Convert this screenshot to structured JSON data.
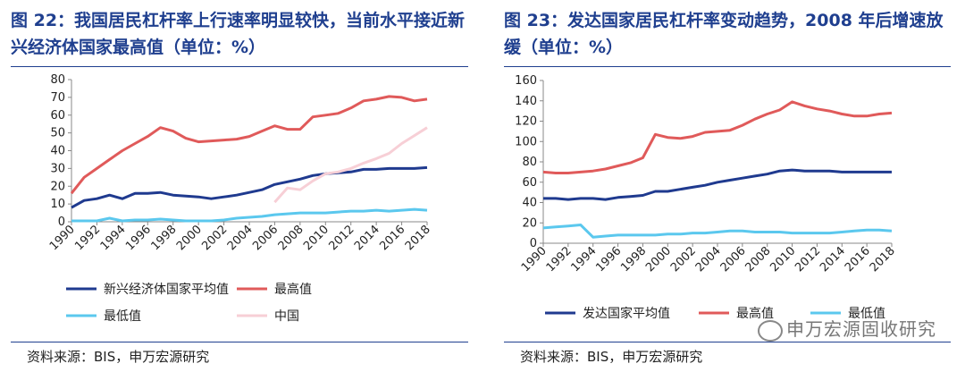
{
  "figures": [
    {
      "title": "图 22：我国居民杠杆率上行速率明显较快，当前水平接近新兴经济体国家最高值（单位：%）",
      "source": "资料来源：BIS，申万宏源研究"
    },
    {
      "title": "图 23：发达国家居民杠杆率变动趋势，2008 年后增速放缓（单位：%）",
      "source": "资料来源：BIS，申万宏源研究"
    }
  ],
  "watermark": "申万宏源固收研究",
  "chart_data": [
    {
      "type": "line",
      "ylim": [
        0,
        80
      ],
      "yticks": [
        0,
        10,
        20,
        30,
        40,
        50,
        60,
        70,
        80
      ],
      "xlim": [
        1990,
        2018
      ],
      "xticks": [
        "1990",
        "1992",
        "1994",
        "1996",
        "1998",
        "2000",
        "2002",
        "2004",
        "2006",
        "2008",
        "2010",
        "2012",
        "2014",
        "2016",
        "2018"
      ],
      "legend_position": "bottom",
      "series": [
        {
          "name": "新兴经济体国家平均值",
          "color": "#1f3a8f",
          "points": [
            [
              1990,
              8
            ],
            [
              1991,
              12
            ],
            [
              1992,
              13
            ],
            [
              1993,
              15
            ],
            [
              1994,
              13
            ],
            [
              1995,
              16
            ],
            [
              1996,
              16
            ],
            [
              1997,
              16.5
            ],
            [
              1998,
              15
            ],
            [
              1999,
              14.5
            ],
            [
              2000,
              14
            ],
            [
              2001,
              13
            ],
            [
              2002,
              14
            ],
            [
              2003,
              15
            ],
            [
              2004,
              16.5
            ],
            [
              2005,
              18
            ],
            [
              2006,
              21
            ],
            [
              2007,
              22.5
            ],
            [
              2008,
              24
            ],
            [
              2009,
              26
            ],
            [
              2010,
              27
            ],
            [
              2011,
              27.5
            ],
            [
              2012,
              28
            ],
            [
              2013,
              29.5
            ],
            [
              2014,
              29.5
            ],
            [
              2015,
              30
            ],
            [
              2016,
              30
            ],
            [
              2017,
              30
            ],
            [
              2018,
              30.5
            ]
          ]
        },
        {
          "name": "最高值",
          "color": "#e05a5a",
          "points": [
            [
              1990,
              16
            ],
            [
              1991,
              25
            ],
            [
              1992,
              30
            ],
            [
              1993,
              35
            ],
            [
              1994,
              40
            ],
            [
              1995,
              44
            ],
            [
              1996,
              48
            ],
            [
              1997,
              53
            ],
            [
              1998,
              51
            ],
            [
              1999,
              47
            ],
            [
              2000,
              45
            ],
            [
              2001,
              45.5
            ],
            [
              2002,
              46
            ],
            [
              2003,
              46.5
            ],
            [
              2004,
              48
            ],
            [
              2005,
              51
            ],
            [
              2006,
              54
            ],
            [
              2007,
              52
            ],
            [
              2008,
              52
            ],
            [
              2009,
              59
            ],
            [
              2010,
              60
            ],
            [
              2011,
              61
            ],
            [
              2012,
              64
            ],
            [
              2013,
              68
            ],
            [
              2014,
              69
            ],
            [
              2015,
              70.5
            ],
            [
              2016,
              70
            ],
            [
              2017,
              68
            ],
            [
              2018,
              69
            ]
          ]
        },
        {
          "name": "最低值",
          "color": "#5bc8ee",
          "points": [
            [
              1990,
              0.5
            ],
            [
              1991,
              0.5
            ],
            [
              1992,
              0.5
            ],
            [
              1993,
              2
            ],
            [
              1994,
              0.5
            ],
            [
              1995,
              1
            ],
            [
              1996,
              1
            ],
            [
              1997,
              1.5
            ],
            [
              1998,
              1
            ],
            [
              1999,
              0.5
            ],
            [
              2000,
              0.5
            ],
            [
              2001,
              0.5
            ],
            [
              2002,
              1
            ],
            [
              2003,
              2
            ],
            [
              2004,
              2.5
            ],
            [
              2005,
              3
            ],
            [
              2006,
              4
            ],
            [
              2007,
              4.5
            ],
            [
              2008,
              5
            ],
            [
              2009,
              5
            ],
            [
              2010,
              5
            ],
            [
              2011,
              5.5
            ],
            [
              2012,
              6
            ],
            [
              2013,
              6
            ],
            [
              2014,
              6.5
            ],
            [
              2015,
              6
            ],
            [
              2016,
              6.5
            ],
            [
              2017,
              7
            ],
            [
              2018,
              6.5
            ]
          ]
        },
        {
          "name": "中国",
          "color": "#f7cfd6",
          "points": [
            [
              2006,
              11
            ],
            [
              2007,
              19
            ],
            [
              2008,
              18
            ],
            [
              2009,
              23
            ],
            [
              2010,
              27
            ],
            [
              2011,
              28
            ],
            [
              2012,
              30
            ],
            [
              2013,
              33
            ],
            [
              2014,
              35.5
            ],
            [
              2015,
              38.5
            ],
            [
              2016,
              44
            ],
            [
              2017,
              48.5
            ],
            [
              2018,
              53
            ]
          ]
        }
      ]
    },
    {
      "type": "line",
      "ylim": [
        0,
        160
      ],
      "yticks": [
        0,
        20,
        40,
        60,
        80,
        100,
        120,
        140,
        160
      ],
      "xlim": [
        1990,
        2018
      ],
      "xticks": [
        "1990",
        "1992",
        "1994",
        "1996",
        "1998",
        "2000",
        "2002",
        "2004",
        "2006",
        "2008",
        "2010",
        "2012",
        "2014",
        "2016",
        "2018"
      ],
      "legend_position": "bottom",
      "series": [
        {
          "name": "发达国家平均值",
          "color": "#1f3a8f",
          "points": [
            [
              1990,
              44
            ],
            [
              1991,
              44
            ],
            [
              1992,
              43
            ],
            [
              1993,
              44
            ],
            [
              1994,
              44
            ],
            [
              1995,
              43
            ],
            [
              1996,
              45
            ],
            [
              1997,
              46
            ],
            [
              1998,
              47
            ],
            [
              1999,
              51
            ],
            [
              2000,
              51
            ],
            [
              2001,
              53
            ],
            [
              2002,
              55
            ],
            [
              2003,
              57
            ],
            [
              2004,
              60
            ],
            [
              2005,
              62
            ],
            [
              2006,
              64
            ],
            [
              2007,
              66
            ],
            [
              2008,
              68
            ],
            [
              2009,
              71
            ],
            [
              2010,
              72
            ],
            [
              2011,
              71
            ],
            [
              2012,
              71
            ],
            [
              2013,
              71
            ],
            [
              2014,
              70
            ],
            [
              2015,
              70
            ],
            [
              2016,
              70
            ],
            [
              2017,
              70
            ],
            [
              2018,
              70
            ]
          ]
        },
        {
          "name": "最高值",
          "color": "#e05a5a",
          "points": [
            [
              1990,
              70
            ],
            [
              1991,
              69
            ],
            [
              1992,
              69
            ],
            [
              1993,
              70
            ],
            [
              1994,
              71
            ],
            [
              1995,
              73
            ],
            [
              1996,
              76
            ],
            [
              1997,
              79
            ],
            [
              1998,
              84
            ],
            [
              1999,
              107
            ],
            [
              2000,
              104
            ],
            [
              2001,
              103
            ],
            [
              2002,
              105
            ],
            [
              2003,
              109
            ],
            [
              2004,
              110
            ],
            [
              2005,
              111
            ],
            [
              2006,
              116
            ],
            [
              2007,
              122
            ],
            [
              2008,
              127
            ],
            [
              2009,
              131
            ],
            [
              2010,
              139
            ],
            [
              2011,
              135
            ],
            [
              2012,
              132
            ],
            [
              2013,
              130
            ],
            [
              2014,
              127
            ],
            [
              2015,
              125
            ],
            [
              2016,
              125
            ],
            [
              2017,
              127
            ],
            [
              2018,
              128
            ]
          ]
        },
        {
          "name": "最低值",
          "color": "#5bc8ee",
          "points": [
            [
              1990,
              15
            ],
            [
              1991,
              16
            ],
            [
              1992,
              17
            ],
            [
              1993,
              18
            ],
            [
              1994,
              6
            ],
            [
              1995,
              7
            ],
            [
              1996,
              8
            ],
            [
              1997,
              8
            ],
            [
              1998,
              8
            ],
            [
              1999,
              8
            ],
            [
              2000,
              9
            ],
            [
              2001,
              9
            ],
            [
              2002,
              10
            ],
            [
              2003,
              10
            ],
            [
              2004,
              11
            ],
            [
              2005,
              12
            ],
            [
              2006,
              12
            ],
            [
              2007,
              11
            ],
            [
              2008,
              11
            ],
            [
              2009,
              11
            ],
            [
              2010,
              10
            ],
            [
              2011,
              10
            ],
            [
              2012,
              10
            ],
            [
              2013,
              10
            ],
            [
              2014,
              11
            ],
            [
              2015,
              12
            ],
            [
              2016,
              13
            ],
            [
              2017,
              13
            ],
            [
              2018,
              12
            ]
          ]
        }
      ]
    }
  ]
}
